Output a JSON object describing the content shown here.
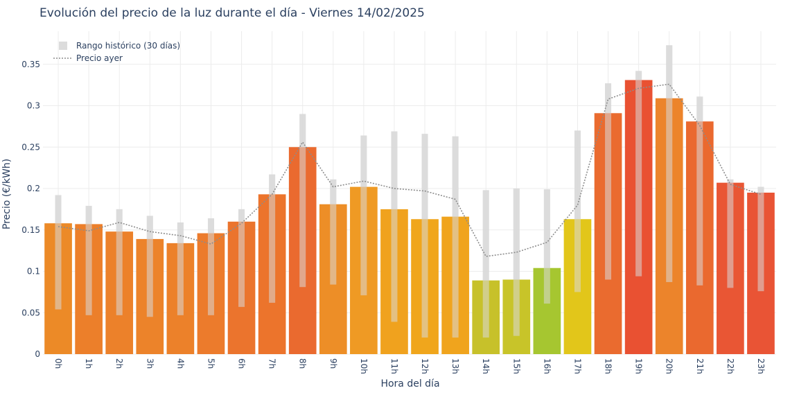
{
  "chart_data": {
    "type": "bar",
    "title": "Evolución del precio de la luz durante el día - Viernes 14/02/2025",
    "xlabel": "Hora del día",
    "ylabel": "Precio (€/kWh)",
    "ylim": [
      0,
      0.39
    ],
    "yticks": [
      0,
      0.05,
      0.1,
      0.15,
      0.2,
      0.25,
      0.3,
      0.35
    ],
    "ytick_labels": [
      "0",
      "0.05",
      "0.1",
      "0.15",
      "0.2",
      "0.25",
      "0.3",
      "0.35"
    ],
    "grid": true,
    "categories": [
      "0h",
      "1h",
      "2h",
      "3h",
      "4h",
      "5h",
      "6h",
      "7h",
      "8h",
      "9h",
      "10h",
      "11h",
      "12h",
      "13h",
      "14h",
      "15h",
      "16h",
      "17h",
      "18h",
      "19h",
      "20h",
      "21h",
      "22h",
      "23h"
    ],
    "values": [
      0.158,
      0.157,
      0.148,
      0.139,
      0.134,
      0.146,
      0.16,
      0.193,
      0.25,
      0.181,
      0.202,
      0.175,
      0.163,
      0.166,
      0.089,
      0.09,
      0.104,
      0.163,
      0.291,
      0.331,
      0.309,
      0.281,
      0.207,
      0.195
    ],
    "bar_colors": [
      "#ec8a27",
      "#ec7f2a",
      "#ec812a",
      "#ec832a",
      "#ec812a",
      "#ec7b2c",
      "#eb742d",
      "#ec742c",
      "#ea6a2f",
      "#ed8e27",
      "#ef9a24",
      "#f0a21e",
      "#f0a61c",
      "#f0a41d",
      "#c7c12a",
      "#c8c429",
      "#a6c630",
      "#e2c61a",
      "#ea6b2f",
      "#e95132",
      "#ec842b",
      "#ea692f",
      "#e95634",
      "#e95435"
    ],
    "series": [
      {
        "name": "Rango histórico (30 días)",
        "type": "range",
        "color": "#dcdcdc",
        "low": [
          0.054,
          0.047,
          0.047,
          0.045,
          0.047,
          0.047,
          0.057,
          0.062,
          0.081,
          0.084,
          0.071,
          0.039,
          0.02,
          0.02,
          0.02,
          0.022,
          0.061,
          0.075,
          0.09,
          0.094,
          0.087,
          0.083,
          0.08,
          0.076
        ],
        "high": [
          0.192,
          0.179,
          0.175,
          0.167,
          0.159,
          0.164,
          0.175,
          0.217,
          0.29,
          0.211,
          0.264,
          0.269,
          0.266,
          0.263,
          0.198,
          0.2,
          0.199,
          0.27,
          0.327,
          0.342,
          0.373,
          0.311,
          0.211,
          0.202
        ]
      },
      {
        "name": "Precio ayer",
        "type": "line",
        "color": "#8c8c8c",
        "values": [
          0.154,
          0.149,
          0.159,
          0.148,
          0.143,
          0.133,
          0.158,
          0.193,
          0.256,
          0.202,
          0.209,
          0.2,
          0.197,
          0.187,
          0.118,
          0.123,
          0.135,
          0.18,
          0.308,
          0.321,
          0.326,
          0.276,
          0.205,
          0.193
        ]
      }
    ],
    "legend_position": "top-left"
  }
}
